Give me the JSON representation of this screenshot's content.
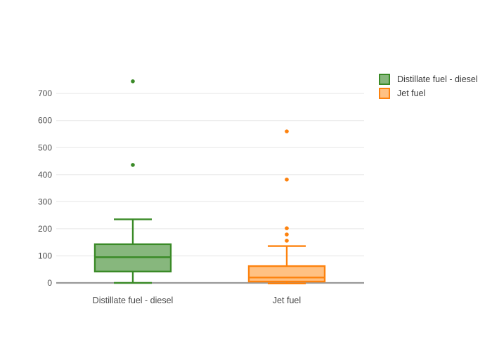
{
  "chart_data": {
    "type": "box",
    "title": "",
    "xlabel": "",
    "ylabel": "",
    "categories": [
      "Distillate fuel - diesel",
      "Jet fuel"
    ],
    "yticks": [
      0,
      100,
      200,
      300,
      400,
      500,
      600,
      700
    ],
    "ylim": [
      -25,
      795
    ],
    "grid": true,
    "legend_position": "top-right",
    "zero_line_color": "#999999",
    "grid_color": "#ececec",
    "series": [
      {
        "name": "Distillate fuel - diesel",
        "color": "#3a8a27",
        "fill_color": "#87b77d",
        "whisker_low": 0,
        "q1": 42,
        "median": 95,
        "q3": 143,
        "whisker_high": 235,
        "outliers": [
          436,
          745
        ]
      },
      {
        "name": "Jet fuel",
        "color": "#fd820e",
        "fill_color": "#ffc183",
        "whisker_low": -2,
        "q1": 5,
        "median": 20,
        "q3": 62,
        "whisker_high": 136,
        "outliers": [
          156,
          179,
          202,
          382,
          560
        ]
      }
    ]
  }
}
